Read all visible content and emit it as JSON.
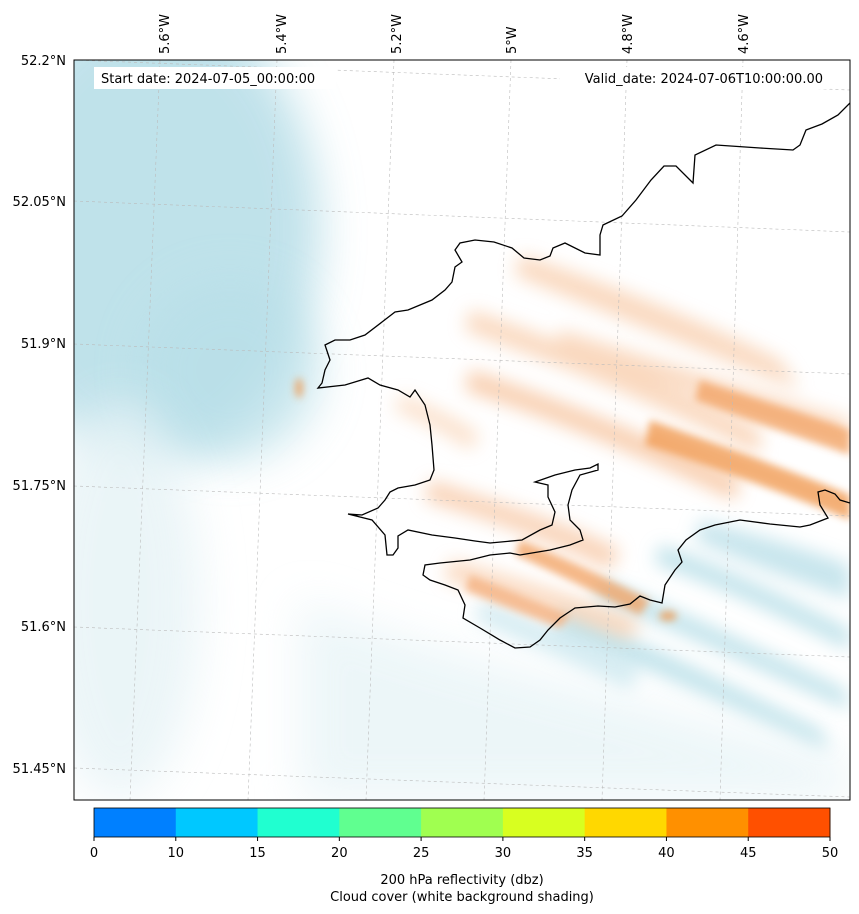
{
  "header": {
    "start_label": "Start date: 2024-07-05_00:00:00",
    "valid_label": "Valid_date: 2024-07-06T10:00:00.00"
  },
  "axes": {
    "lon_labels": [
      "5.6°W",
      "5.4°W",
      "5.2°W",
      "5°W",
      "4.8°W",
      "4.6°W"
    ],
    "lat_labels": [
      "52.2°N",
      "52.05°N",
      "51.9°N",
      "51.75°N",
      "51.6°N",
      "51.45°N"
    ]
  },
  "colorbar": {
    "ticks": [
      "0",
      "10",
      "15",
      "20",
      "25",
      "30",
      "35",
      "40",
      "45",
      "50"
    ],
    "colors": [
      "#0080ff",
      "#00c8ff",
      "#20ffd0",
      "#60ff90",
      "#a0ff50",
      "#d8ff20",
      "#ffd800",
      "#ff9000",
      "#ff5000"
    ],
    "label_line1": "200 hPa reflectivity (dbz)",
    "label_line2": "Cloud cover (white background shading)"
  },
  "colors": {
    "cloud": "#a9d8e3",
    "reflectivity": "#f0954a",
    "coast": "#000000",
    "grid": "#bbbbbb"
  }
}
